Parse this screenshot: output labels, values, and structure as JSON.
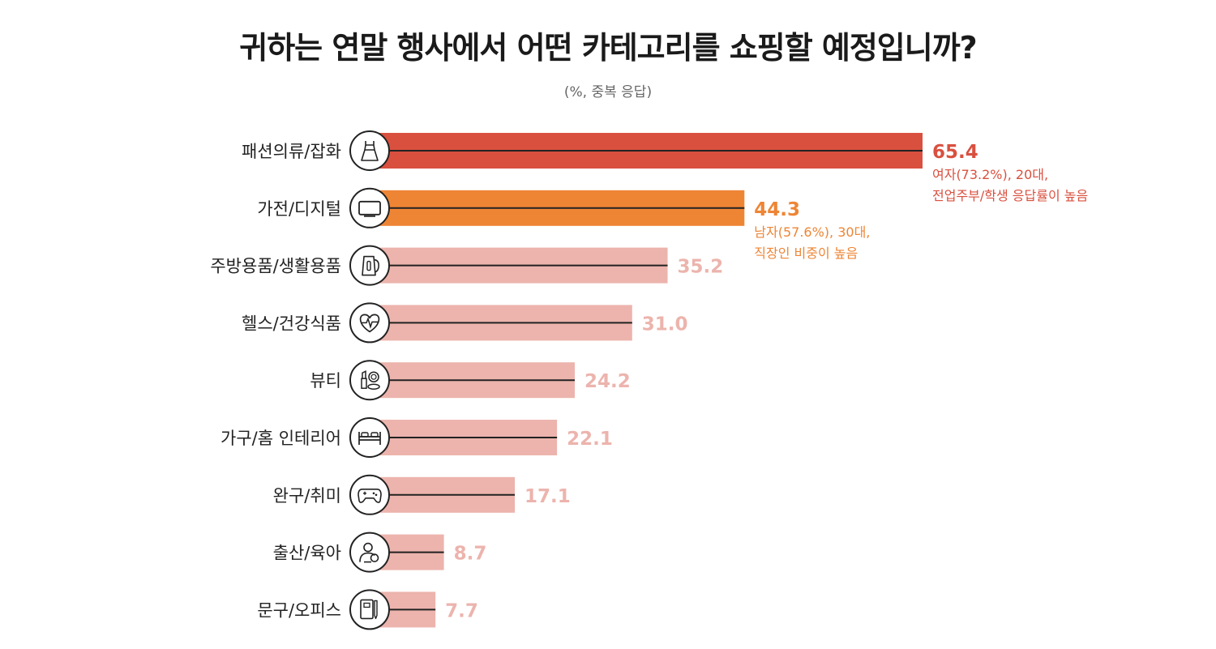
{
  "chart_data": {
    "type": "bar",
    "orientation": "horizontal",
    "title": "귀하는 연말 행사에서 어떤 카테고리를 쇼핑할 예정입니까?",
    "subtitle": "(%, 중복 응답)",
    "categories": [
      "패션의류/잡화",
      "가전/디지털",
      "주방용품/생활용품",
      "헬스/건강식품",
      "뷰티",
      "가구/홈 인테리어",
      "완구/취미",
      "출산/육아",
      "문구/오피스"
    ],
    "values": [
      65.4,
      44.3,
      35.2,
      31.0,
      24.2,
      22.1,
      17.1,
      8.7,
      7.7
    ],
    "value_labels": [
      "65.4",
      "44.3",
      "35.2",
      "31.0",
      "24.2",
      "22.1",
      "17.1",
      "8.7",
      "7.7"
    ],
    "icons": [
      "dress-icon",
      "tv-icon",
      "kettle-icon",
      "heart-pulse-icon",
      "cosmetics-icon",
      "bed-icon",
      "gamepad-icon",
      "mother-baby-icon",
      "notebook-icon"
    ],
    "colors": [
      "#d9503f",
      "#ee8535",
      "#ecb4ad",
      "#ecb4ad",
      "#ecb4ad",
      "#ecb4ad",
      "#ecb4ad",
      "#ecb4ad",
      "#ecb4ad"
    ],
    "annotations": [
      {
        "category": "패션의류/잡화",
        "lines": [
          "여자(73.2%), 20대,",
          "전업주부/학생 응답률이 높음"
        ],
        "color": "#d9503f"
      },
      {
        "category": "가전/디지털",
        "lines": [
          "남자(57.6%), 30대,",
          "직장인 비중이 높음"
        ],
        "color": "#ee8535"
      }
    ],
    "xlim": [
      0,
      65.4
    ],
    "grid": false,
    "legend": "none"
  }
}
